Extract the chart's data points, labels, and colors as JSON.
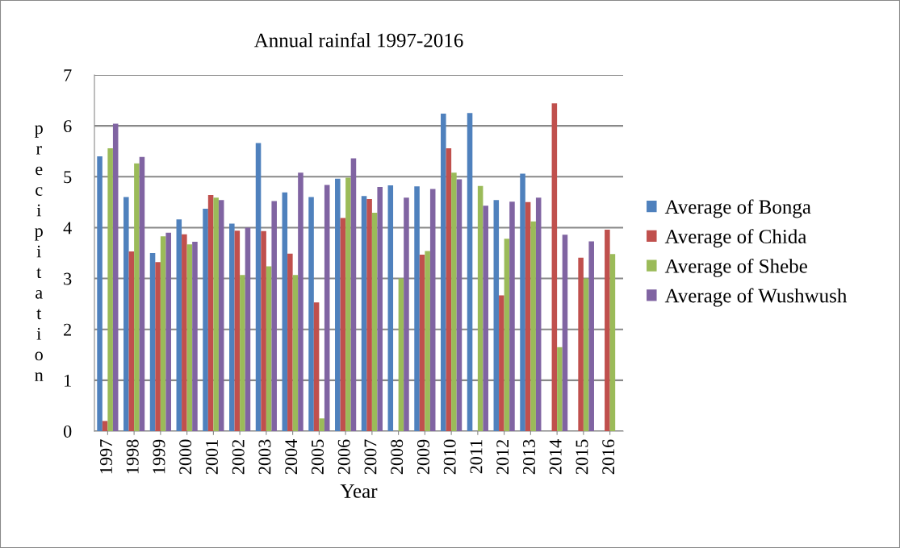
{
  "chart_data": {
    "type": "bar",
    "title": "Annual rainfal 1997-2016",
    "xlabel": "Year",
    "ylabel": "precipitation",
    "categories": [
      "1997",
      "1998",
      "1999",
      "2000",
      "2001",
      "2002",
      "2003",
      "2004",
      "2005",
      "2006",
      "2007",
      "2008",
      "2009",
      "2010",
      "2011",
      "2012",
      "2013",
      "2014",
      "2015",
      "2016"
    ],
    "series": [
      {
        "name": "Average of Bonga",
        "color": "#4f81bd",
        "values": [
          5.4,
          4.6,
          3.5,
          4.16,
          4.37,
          4.08,
          5.66,
          4.69,
          4.6,
          4.96,
          4.62,
          4.83,
          4.81,
          6.24,
          6.25,
          4.54,
          5.06,
          null,
          null,
          null
        ]
      },
      {
        "name": "Average of Chida",
        "color": "#c0504d",
        "values": [
          0.2,
          3.53,
          3.32,
          3.87,
          4.64,
          3.94,
          3.93,
          3.49,
          2.53,
          4.19,
          4.56,
          null,
          3.47,
          5.56,
          null,
          2.67,
          4.5,
          6.44,
          3.41,
          3.96
        ]
      },
      {
        "name": "Average of Shebe",
        "color": "#9bbb59",
        "values": [
          5.56,
          5.26,
          3.83,
          3.67,
          4.59,
          3.07,
          3.24,
          3.07,
          0.25,
          4.98,
          4.29,
          3.0,
          3.54,
          5.08,
          4.82,
          3.78,
          4.12,
          1.65,
          3.0,
          3.48
        ]
      },
      {
        "name": "Average of Wushwush",
        "color": "#8064a2",
        "values": [
          6.04,
          5.39,
          3.9,
          3.72,
          4.54,
          4.0,
          4.52,
          5.08,
          4.84,
          5.36,
          4.8,
          4.59,
          4.76,
          4.95,
          4.43,
          4.51,
          4.59,
          3.86,
          3.73,
          null
        ]
      }
    ],
    "ylim": [
      0,
      7
    ],
    "yticks": [
      0,
      1,
      2,
      3,
      4,
      5,
      6,
      7
    ],
    "grid": "y",
    "legend": "right"
  }
}
